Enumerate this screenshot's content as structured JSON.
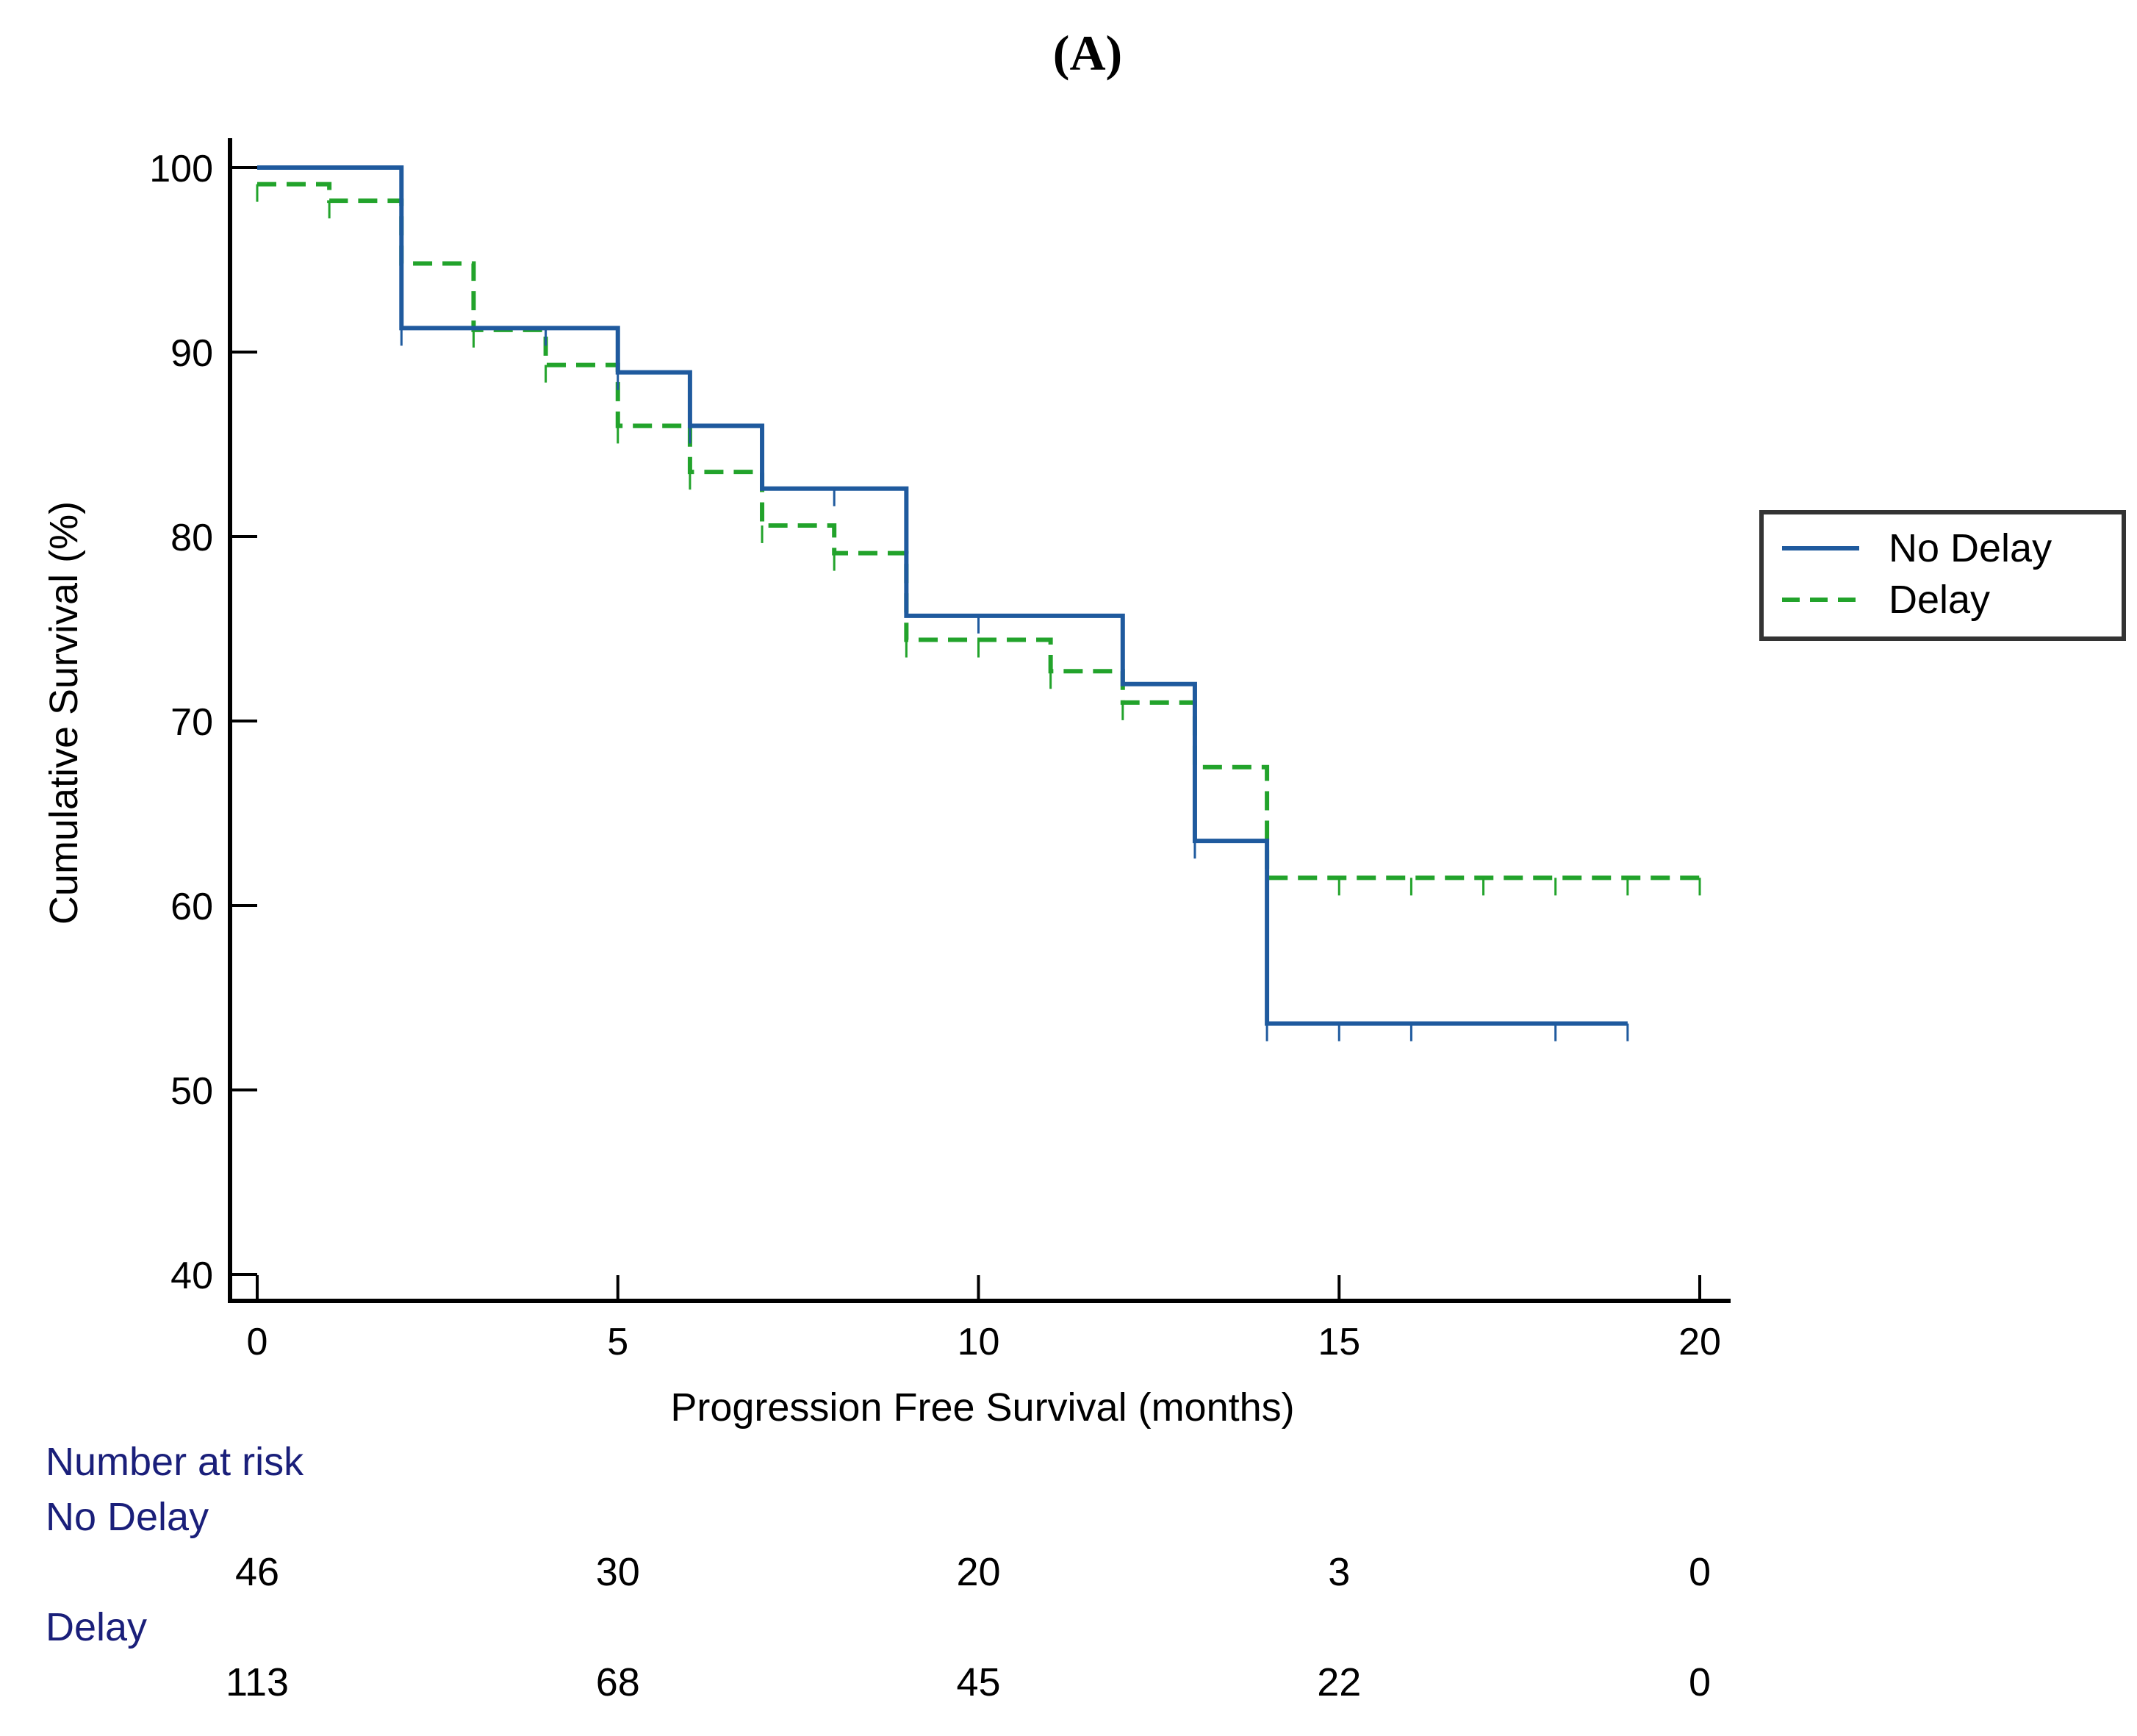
{
  "panel_label": "(A)",
  "chart_data": {
    "type": "line",
    "subtype": "kaplan-meier-step",
    "title": "",
    "xlabel": "Progression Free Survival (months)",
    "ylabel": "Cumulative Survival (%)",
    "xlim": [
      0,
      20
    ],
    "ylim": [
      40,
      100
    ],
    "xticks": [
      0,
      5,
      10,
      15,
      20
    ],
    "yticks": [
      40,
      50,
      60,
      70,
      80,
      90,
      100
    ],
    "grid": false,
    "legend_position": "right",
    "series": [
      {
        "name": "No Delay",
        "color": "#1f5a9e",
        "style": "solid",
        "steps": [
          [
            0,
            100
          ],
          [
            2,
            91.3
          ],
          [
            5,
            88.9
          ],
          [
            6,
            86.0
          ],
          [
            7,
            82.6
          ],
          [
            9,
            75.7
          ],
          [
            12,
            72.0
          ],
          [
            13,
            63.5
          ],
          [
            14,
            53.6
          ]
        ],
        "end_x": 19,
        "censor_times": [
          2,
          4,
          5,
          6,
          8,
          10,
          13,
          14,
          15,
          16,
          18,
          19
        ]
      },
      {
        "name": "Delay",
        "color": "#22a32b",
        "style": "dashed",
        "steps": [
          [
            0,
            99.1
          ],
          [
            1,
            98.2
          ],
          [
            2,
            94.8
          ],
          [
            3,
            91.2
          ],
          [
            4,
            89.3
          ],
          [
            5,
            86.0
          ],
          [
            6,
            83.5
          ],
          [
            7,
            80.6
          ],
          [
            8,
            79.1
          ],
          [
            9,
            74.4
          ],
          [
            11,
            72.7
          ],
          [
            12,
            71.0
          ],
          [
            13,
            67.5
          ],
          [
            14,
            61.5
          ]
        ],
        "end_x": 20,
        "censor_times": [
          0,
          1,
          2,
          3,
          4,
          5,
          6,
          7,
          8,
          9,
          10,
          11,
          12,
          14,
          15,
          16,
          17,
          18,
          19,
          20
        ]
      }
    ],
    "risk_table": {
      "title": "Number at risk",
      "times": [
        0,
        5,
        10,
        15,
        20
      ],
      "rows": [
        {
          "name": "No Delay",
          "values": [
            "46",
            "30",
            "20",
            "3",
            "0"
          ]
        },
        {
          "name": "Delay",
          "values": [
            "113",
            "68",
            "45",
            "22",
            "0"
          ]
        }
      ]
    }
  }
}
